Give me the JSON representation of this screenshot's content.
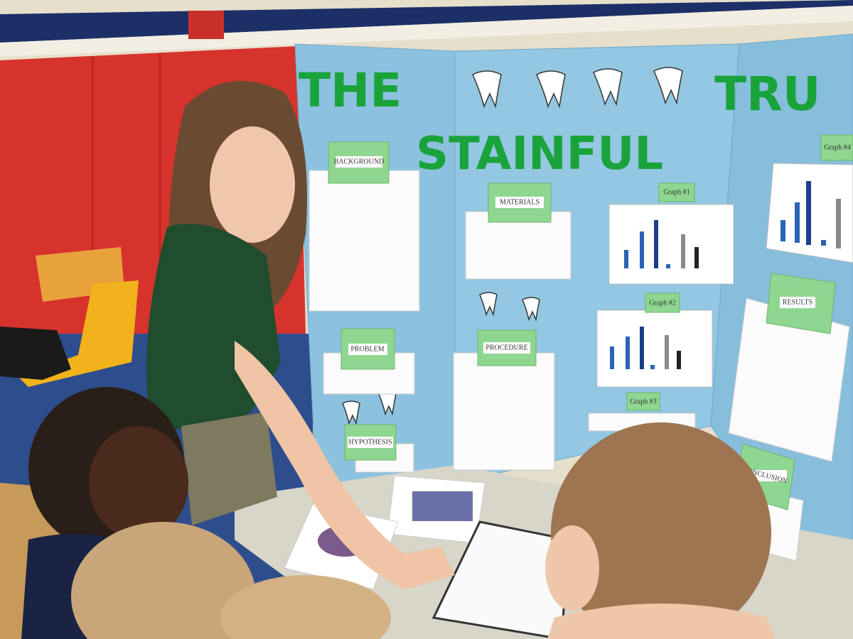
{
  "board": {
    "title": [
      "THE",
      "TRU"
    ],
    "subtitle": "STAINFUL",
    "sections": [
      {
        "label": "BACKGROUND"
      },
      {
        "label": "MATERIALS"
      },
      {
        "label": "PROBLEM"
      },
      {
        "label": "PROCEDURE"
      },
      {
        "label": "HYPOTHESIS"
      },
      {
        "label": "RESULTS"
      },
      {
        "label": "CONCLUSION"
      }
    ],
    "graphs": [
      "Graph #1",
      "Graph #2",
      "Graph #3",
      "Graph #4"
    ]
  }
}
